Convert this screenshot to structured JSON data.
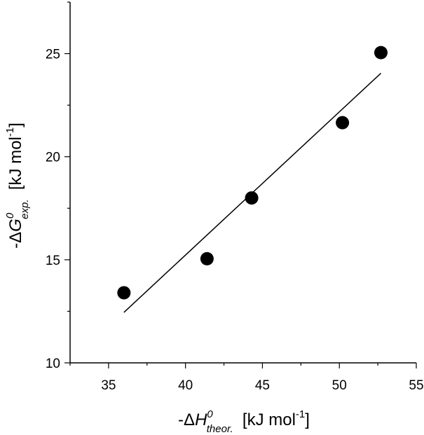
{
  "chart_data": {
    "type": "scatter",
    "title": "",
    "xlabel": {
      "prefix": "-Δ",
      "var": "H",
      "sup": "0",
      "sub": "theor.",
      "unit_start": "  [kJ mol",
      "unit_sup": "-1",
      "unit_end": "]"
    },
    "ylabel": {
      "prefix": "-Δ",
      "var": "G",
      "sup": "0",
      "sub": "exp.",
      "unit_start": "  [kJ mol",
      "unit_sup": "-1",
      "unit_end": "]"
    },
    "xlim": [
      32.5,
      55
    ],
    "ylim": [
      10,
      27.5
    ],
    "xticks": [
      35,
      40,
      45,
      50,
      55
    ],
    "yticks": [
      10,
      15,
      20,
      25
    ],
    "xtick_labels": [
      "35",
      "40",
      "45",
      "50",
      "55"
    ],
    "ytick_labels": [
      "10",
      "15",
      "20",
      "25"
    ],
    "grid": false,
    "legend": "none",
    "points": [
      {
        "x": 36.0,
        "y": 13.4
      },
      {
        "x": 41.4,
        "y": 15.05
      },
      {
        "x": 44.3,
        "y": 18.0
      },
      {
        "x": 50.2,
        "y": 21.65
      },
      {
        "x": 52.7,
        "y": 25.05
      }
    ],
    "fit_line": [
      {
        "x": 36.0,
        "y": 12.45
      },
      {
        "x": 52.7,
        "y": 24.05
      }
    ],
    "colors": {
      "marker": "#000000",
      "line": "#000000",
      "axis": "#000000"
    }
  }
}
